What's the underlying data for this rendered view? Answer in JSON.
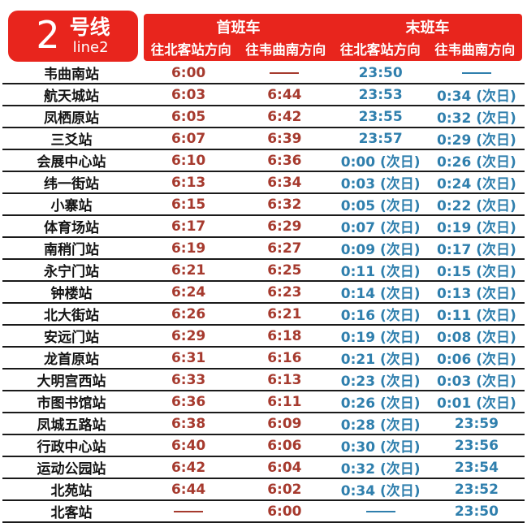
{
  "line_badge": {
    "number": "2",
    "name_cn": "号线",
    "name_en": "line2"
  },
  "header": {
    "groups": [
      {
        "label": "首班车"
      },
      {
        "label": "末班车"
      }
    ],
    "directions": [
      "往北客站方向",
      "往韦曲南方向",
      "往北客站方向",
      "往韦曲南方向"
    ]
  },
  "colors": {
    "brand_red": "#e8251d",
    "first_train_time": "#a63a2e",
    "last_train_time": "#2f7fad"
  },
  "timetable": {
    "no_service_symbol": "——",
    "columns": [
      "station",
      "first_to_beikezhan",
      "first_to_weiqunan",
      "last_to_beikezhan",
      "last_to_weiqunan"
    ],
    "rows": [
      {
        "station": "韦曲南站",
        "times": [
          "6:00",
          "——",
          "23:50",
          "——"
        ]
      },
      {
        "station": "航天城站",
        "times": [
          "6:03",
          "6:44",
          "23:53",
          "0:34 (次日)"
        ]
      },
      {
        "station": "凤栖原站",
        "times": [
          "6:05",
          "6:42",
          "23:55",
          "0:32 (次日)"
        ]
      },
      {
        "station": "三爻站",
        "times": [
          "6:07",
          "6:39",
          "23:57",
          "0:29 (次日)"
        ]
      },
      {
        "station": "会展中心站",
        "times": [
          "6:10",
          "6:36",
          "0:00 (次日)",
          "0:26 (次日)"
        ]
      },
      {
        "station": "纬一街站",
        "times": [
          "6:13",
          "6:34",
          "0:03 (次日)",
          "0:24 (次日)"
        ]
      },
      {
        "station": "小寨站",
        "times": [
          "6:15",
          "6:32",
          "0:05 (次日)",
          "0:22 (次日)"
        ]
      },
      {
        "station": "体育场站",
        "times": [
          "6:17",
          "6:29",
          "0:07 (次日)",
          "0:19 (次日)"
        ]
      },
      {
        "station": "南稍门站",
        "times": [
          "6:19",
          "6:27",
          "0:09 (次日)",
          "0:17 (次日)"
        ]
      },
      {
        "station": "永宁门站",
        "times": [
          "6:21",
          "6:25",
          "0:11 (次日)",
          "0:15 (次日)"
        ]
      },
      {
        "station": "钟楼站",
        "times": [
          "6:24",
          "6:23",
          "0:14 (次日)",
          "0:13 (次日)"
        ]
      },
      {
        "station": "北大街站",
        "times": [
          "6:26",
          "6:21",
          "0:16 (次日)",
          "0:11 (次日)"
        ]
      },
      {
        "station": "安远门站",
        "times": [
          "6:29",
          "6:18",
          "0:19 (次日)",
          "0:08 (次日)"
        ]
      },
      {
        "station": "龙首原站",
        "times": [
          "6:31",
          "6:16",
          "0:21 (次日)",
          "0:06 (次日)"
        ]
      },
      {
        "station": "大明宫西站",
        "times": [
          "6:33",
          "6:13",
          "0:23 (次日)",
          "0:03 (次日)"
        ]
      },
      {
        "station": "市图书馆站",
        "times": [
          "6:36",
          "6:11",
          "0:26 (次日)",
          "0:01 (次日)"
        ]
      },
      {
        "station": "凤城五路站",
        "times": [
          "6:38",
          "6:09",
          "0:28 (次日)",
          "23:59"
        ]
      },
      {
        "station": "行政中心站",
        "times": [
          "6:40",
          "6:06",
          "0:30 (次日)",
          "23:56"
        ]
      },
      {
        "station": "运动公园站",
        "times": [
          "6:42",
          "6:04",
          "0:32 (次日)",
          "23:54"
        ]
      },
      {
        "station": "北苑站",
        "times": [
          "6:44",
          "6:02",
          "0:34 (次日)",
          "23:52"
        ]
      },
      {
        "station": "北客站",
        "times": [
          "——",
          "6:00",
          "——",
          "23:50"
        ]
      }
    ]
  }
}
